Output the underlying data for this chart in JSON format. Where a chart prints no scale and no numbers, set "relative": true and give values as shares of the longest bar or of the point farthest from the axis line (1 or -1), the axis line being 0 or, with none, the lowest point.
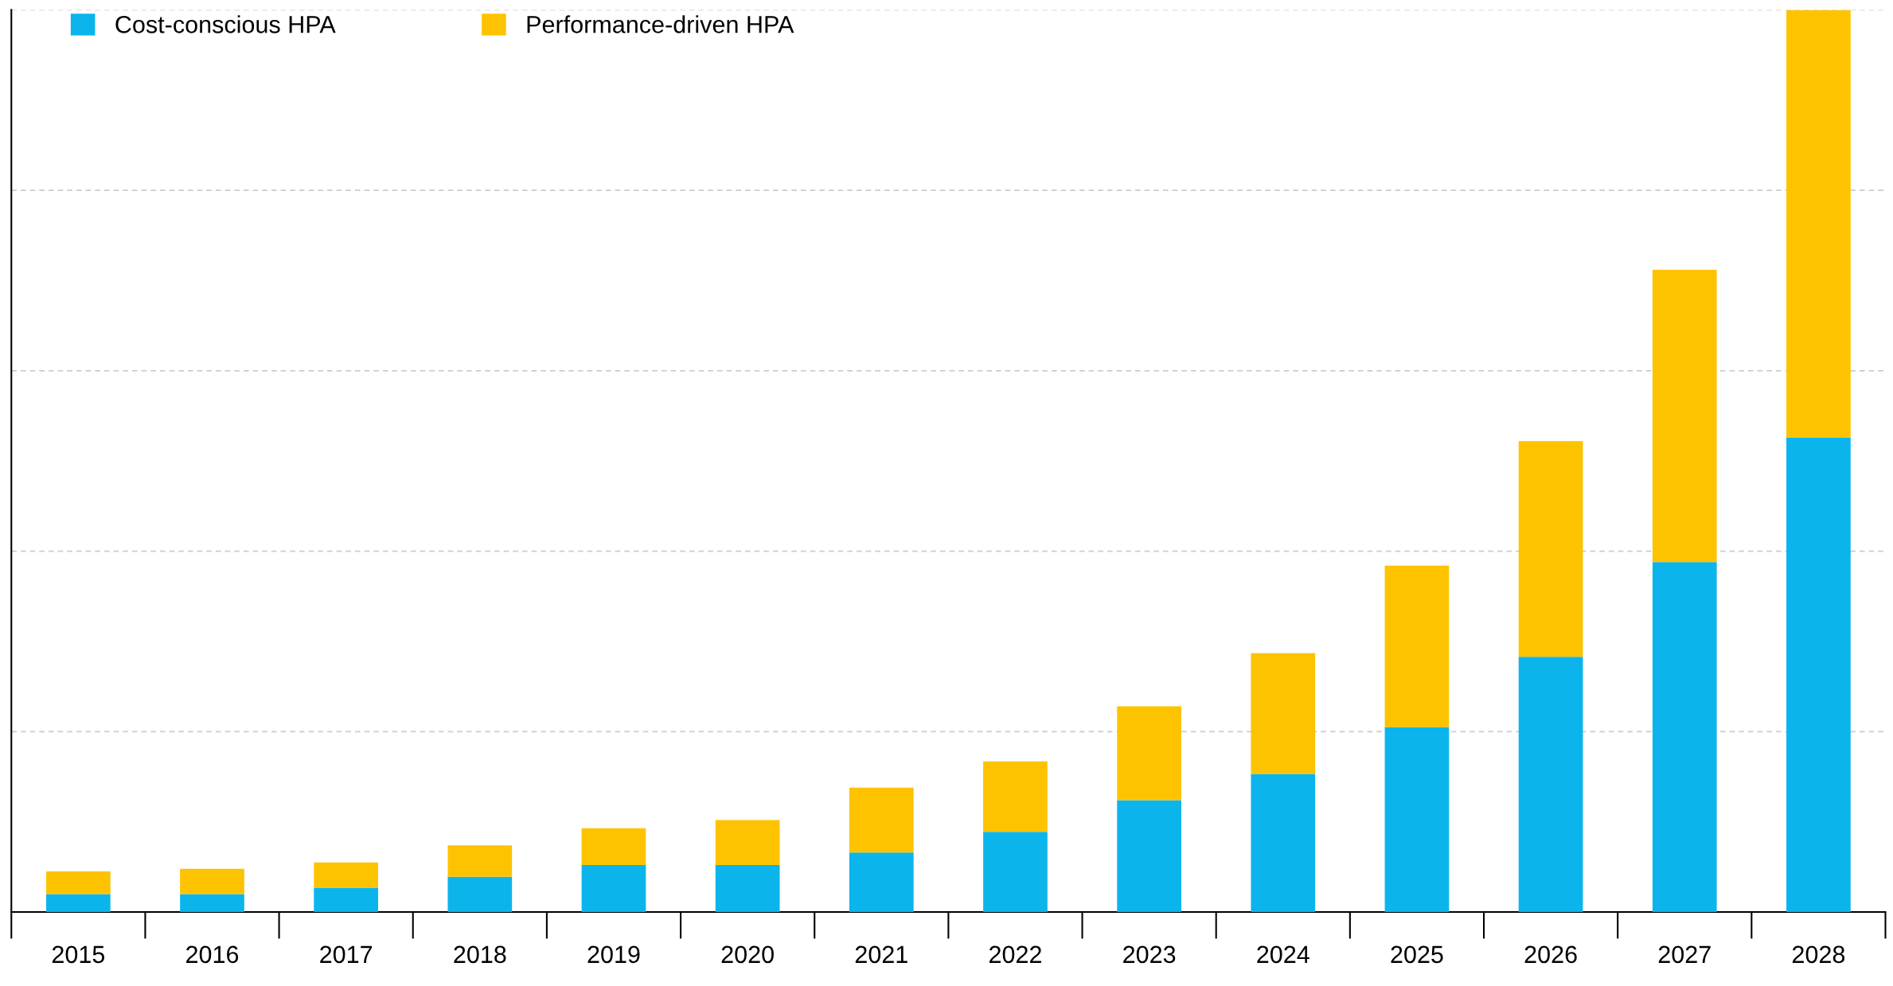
{
  "chart_data": {
    "type": "bar",
    "stacked": true,
    "relative": true,
    "legend": "top left",
    "grid": "y",
    "categories": [
      "2015",
      "2016",
      "2017",
      "2018",
      "2019",
      "2020",
      "2021",
      "2022",
      "2023",
      "2024",
      "2025",
      "2026",
      "2027",
      "2028"
    ],
    "series": [
      {
        "name": "Cost-conscious HPA",
        "color": "#0bb5ec",
        "values": [
          0.02,
          0.02,
          0.027,
          0.039,
          0.052,
          0.052,
          0.066,
          0.089,
          0.124,
          0.153,
          0.205,
          0.283,
          0.388,
          0.526
        ]
      },
      {
        "name": "Performance-driven HPA",
        "color": "#fdc300",
        "values": [
          0.025,
          0.028,
          0.028,
          0.035,
          0.041,
          0.05,
          0.072,
          0.078,
          0.104,
          0.134,
          0.179,
          0.239,
          0.324,
          0.474
        ]
      }
    ]
  }
}
